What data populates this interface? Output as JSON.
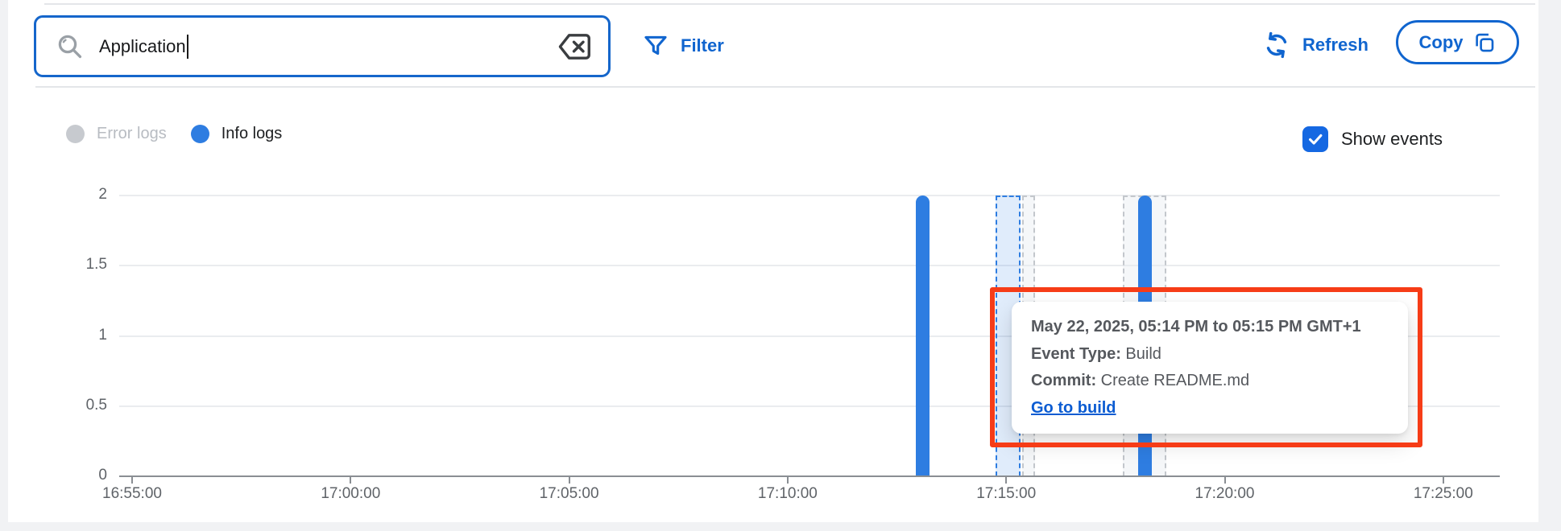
{
  "toolbar": {
    "search": {
      "value": "Application",
      "icon": "magnifier"
    },
    "filter_label": "Filter",
    "refresh_label": "Refresh",
    "copy_label": "Copy"
  },
  "legend": {
    "error": {
      "label": "Error logs",
      "color": "#c7cacf",
      "enabled": false
    },
    "info": {
      "label": "Info logs",
      "color": "#2e7de1",
      "enabled": true
    }
  },
  "show_events": {
    "label": "Show events",
    "checked": true
  },
  "tooltip": {
    "title": "May 22, 2025, 05:14 PM to 05:15 PM GMT+1",
    "event_type_label": "Event Type:",
    "event_type_value": " Build",
    "commit_label": "Commit:",
    "commit_value": " Create README.md",
    "link_label": "Go to build"
  },
  "colors": {
    "accent_blue": "#1065cf",
    "bar_blue": "#2e7de1",
    "checkbox_blue": "#1568e2",
    "link_blue": "#0b5cd2",
    "annotation_red": "#f63c17",
    "legend_gray": "#c7cacf"
  },
  "chart_data": {
    "type": "bar",
    "title": "",
    "xlabel": "",
    "ylabel": "",
    "ylim": [
      0,
      2
    ],
    "grid": true,
    "x_ticks": [
      "16:55:00",
      "17:00:00",
      "17:05:00",
      "17:10:00",
      "17:15:00",
      "17:20:00",
      "17:25:00"
    ],
    "y_ticks": [
      0,
      0.5,
      1,
      1.5,
      2
    ],
    "series": [
      {
        "name": "Info logs",
        "color": "#2e7de1",
        "points": [
          {
            "time": "17:13:05",
            "value": 2
          },
          {
            "time": "17:18:10",
            "value": 2
          }
        ]
      },
      {
        "name": "Error logs",
        "color": "#c7cacf",
        "points": []
      }
    ],
    "events": [
      {
        "from": "17:14:45",
        "to": "17:15:20",
        "style": "highlight"
      },
      {
        "from": "17:15:22",
        "to": "17:15:40",
        "style": "normal"
      },
      {
        "from": "17:17:40",
        "to": "17:18:40",
        "style": "normal"
      }
    ],
    "legend_position": "top-left"
  }
}
